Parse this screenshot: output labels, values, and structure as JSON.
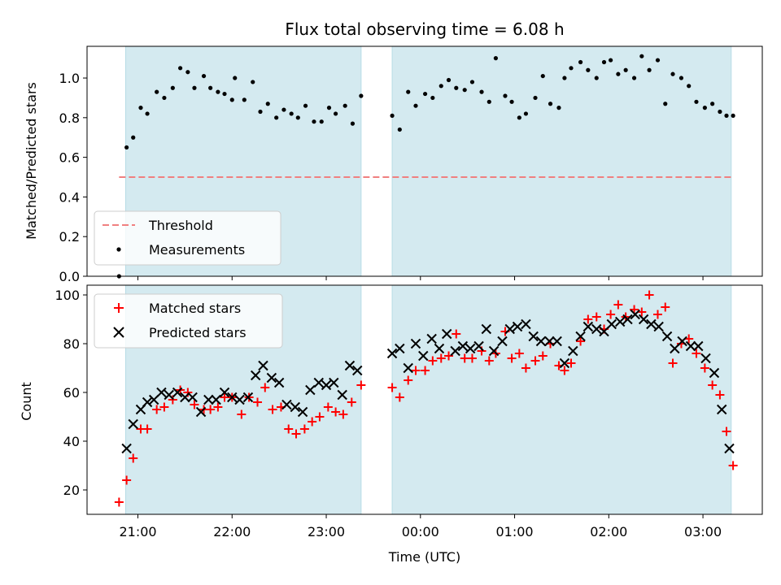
{
  "chart_data": {
    "type": "scatter",
    "title": "Flux total observing time = 6.08 h",
    "xlabel": "Time (UTC)",
    "x_ticks": [
      "21:00",
      "22:00",
      "23:00",
      "00:00",
      "01:00",
      "02:00",
      "03:00"
    ],
    "x_tick_hours": [
      0,
      1,
      2,
      3,
      4,
      5,
      6
    ],
    "x_range_hours": [
      -0.54,
      6.63
    ],
    "shaded_intervals_hours": [
      [
        -0.13,
        2.37
      ],
      [
        2.7,
        6.3
      ]
    ],
    "top_panel": {
      "ylabel": "Matched/Predicted stars",
      "ylim": [
        0,
        1.16
      ],
      "y_ticks": [
        "0.0",
        "0.2",
        "0.4",
        "0.6",
        "0.8",
        "1.0"
      ],
      "y_tick_values": [
        0,
        0.2,
        0.4,
        0.6,
        0.8,
        1.0
      ],
      "threshold": {
        "name": "Threshold",
        "value": 0.5,
        "x_range_hours": [
          -0.2,
          6.3
        ],
        "color": "#f08080"
      },
      "legend": {
        "placement": "lower-left",
        "entries": [
          "Threshold",
          "Measurements"
        ]
      },
      "measurements": {
        "name": "Measurements",
        "color": "#000000",
        "x": [
          -0.2,
          -0.12,
          -0.05,
          0.03,
          0.1,
          0.2,
          0.28,
          0.37,
          0.45,
          0.53,
          0.6,
          0.7,
          0.77,
          0.85,
          0.92,
          1.0,
          1.03,
          1.13,
          1.22,
          1.3,
          1.38,
          1.47,
          1.55,
          1.63,
          1.7,
          1.78,
          1.87,
          1.95,
          2.03,
          2.1,
          2.2,
          2.28,
          2.37,
          2.7,
          2.78,
          2.87,
          2.95,
          3.05,
          3.13,
          3.22,
          3.3,
          3.38,
          3.47,
          3.55,
          3.65,
          3.73,
          3.8,
          3.9,
          3.97,
          4.05,
          4.12,
          4.22,
          4.3,
          4.38,
          4.47,
          4.53,
          4.6,
          4.7,
          4.78,
          4.87,
          4.95,
          5.02,
          5.1,
          5.18,
          5.27,
          5.35,
          5.43,
          5.52,
          5.6,
          5.68,
          5.77,
          5.85,
          5.93,
          6.02,
          6.1,
          6.18,
          6.25,
          6.32
        ],
        "y": [
          0.0,
          0.65,
          0.7,
          0.85,
          0.82,
          0.93,
          0.9,
          0.95,
          1.05,
          1.03,
          0.95,
          1.01,
          0.95,
          0.93,
          0.92,
          0.89,
          1.0,
          0.89,
          0.98,
          0.83,
          0.87,
          0.8,
          0.84,
          0.82,
          0.8,
          0.86,
          0.78,
          0.78,
          0.85,
          0.82,
          0.86,
          0.77,
          0.91,
          0.81,
          0.74,
          0.93,
          0.86,
          0.92,
          0.9,
          0.96,
          0.99,
          0.95,
          0.94,
          0.98,
          0.93,
          0.88,
          1.1,
          0.91,
          0.88,
          0.8,
          0.82,
          0.9,
          1.01,
          0.87,
          0.85,
          1.0,
          1.05,
          1.08,
          1.04,
          1.0,
          1.08,
          1.09,
          1.02,
          1.04,
          1.0,
          1.11,
          1.04,
          1.09,
          0.87,
          1.02,
          1.0,
          0.96,
          0.88,
          0.85,
          0.87,
          0.83,
          0.81,
          0.81
        ]
      }
    },
    "bottom_panel": {
      "ylabel": "Count",
      "ylim": [
        10,
        104
      ],
      "y_ticks": [
        "20",
        "40",
        "60",
        "80",
        "100"
      ],
      "y_tick_values": [
        20,
        40,
        60,
        80,
        100
      ],
      "legend": {
        "placement": "upper-left",
        "entries": [
          "Matched stars",
          "Predicted stars"
        ]
      },
      "matched": {
        "name": "Matched stars",
        "marker": "plus",
        "color": "#ff0000",
        "x": [
          -0.2,
          -0.12,
          -0.05,
          0.03,
          0.1,
          0.2,
          0.28,
          0.37,
          0.45,
          0.53,
          0.6,
          0.7,
          0.77,
          0.85,
          0.92,
          1.0,
          1.1,
          1.18,
          1.27,
          1.35,
          1.43,
          1.52,
          1.6,
          1.68,
          1.77,
          1.85,
          1.93,
          2.02,
          2.1,
          2.18,
          2.27,
          2.37,
          2.7,
          2.78,
          2.87,
          2.95,
          3.05,
          3.13,
          3.22,
          3.3,
          3.38,
          3.47,
          3.55,
          3.65,
          3.73,
          3.8,
          3.9,
          3.97,
          4.05,
          4.12,
          4.22,
          4.3,
          4.38,
          4.47,
          4.53,
          4.6,
          4.7,
          4.78,
          4.87,
          4.95,
          5.02,
          5.1,
          5.18,
          5.27,
          5.35,
          5.43,
          5.52,
          5.6,
          5.68,
          5.77,
          5.85,
          5.93,
          6.02,
          6.1,
          6.18,
          6.25,
          6.32
        ],
        "y": [
          15,
          24,
          33,
          45,
          45,
          53,
          54,
          57,
          61,
          60,
          55,
          53,
          53,
          54,
          58,
          58,
          51,
          58,
          56,
          62,
          53,
          54,
          45,
          43,
          45,
          48,
          50,
          54,
          52,
          51,
          56,
          63,
          62,
          58,
          65,
          69,
          69,
          73,
          74,
          75,
          84,
          74,
          74,
          77,
          73,
          76,
          85,
          74,
          76,
          70,
          73,
          75,
          80,
          71,
          69,
          72,
          81,
          90,
          91,
          86,
          92,
          96,
          91,
          94,
          93,
          100,
          92,
          95,
          72,
          80,
          82,
          76,
          70,
          63,
          59,
          44,
          30
        ]
      },
      "predicted": {
        "name": "Predicted stars",
        "marker": "x",
        "color": "#000000",
        "x": [
          -0.12,
          -0.05,
          0.03,
          0.1,
          0.17,
          0.25,
          0.33,
          0.42,
          0.5,
          0.58,
          0.67,
          0.75,
          0.83,
          0.92,
          1.0,
          1.08,
          1.17,
          1.25,
          1.33,
          1.42,
          1.5,
          1.58,
          1.67,
          1.75,
          1.83,
          1.92,
          2.0,
          2.08,
          2.17,
          2.25,
          2.33,
          2.7,
          2.78,
          2.87,
          2.95,
          3.03,
          3.12,
          3.2,
          3.28,
          3.37,
          3.45,
          3.53,
          3.62,
          3.7,
          3.78,
          3.87,
          3.95,
          4.03,
          4.12,
          4.2,
          4.28,
          4.37,
          4.45,
          4.53,
          4.62,
          4.7,
          4.78,
          4.87,
          4.95,
          5.03,
          5.12,
          5.2,
          5.28,
          5.37,
          5.45,
          5.53,
          5.62,
          5.7,
          5.78,
          5.87,
          5.95,
          6.03,
          6.12,
          6.2,
          6.28
        ],
        "y": [
          37,
          47,
          53,
          56,
          57,
          60,
          59,
          60,
          58,
          58,
          52,
          57,
          57,
          60,
          58,
          57,
          58,
          67,
          71,
          66,
          64,
          55,
          54,
          52,
          61,
          64,
          63,
          64,
          59,
          71,
          69,
          76,
          78,
          70,
          80,
          75,
          82,
          78,
          84,
          77,
          79,
          78,
          79,
          86,
          77,
          81,
          86,
          87,
          88,
          83,
          81,
          81,
          81,
          72,
          77,
          83,
          87,
          86,
          85,
          88,
          89,
          90,
          92,
          90,
          88,
          87,
          83,
          78,
          81,
          79,
          79,
          74,
          68,
          53,
          37
        ]
      }
    }
  }
}
